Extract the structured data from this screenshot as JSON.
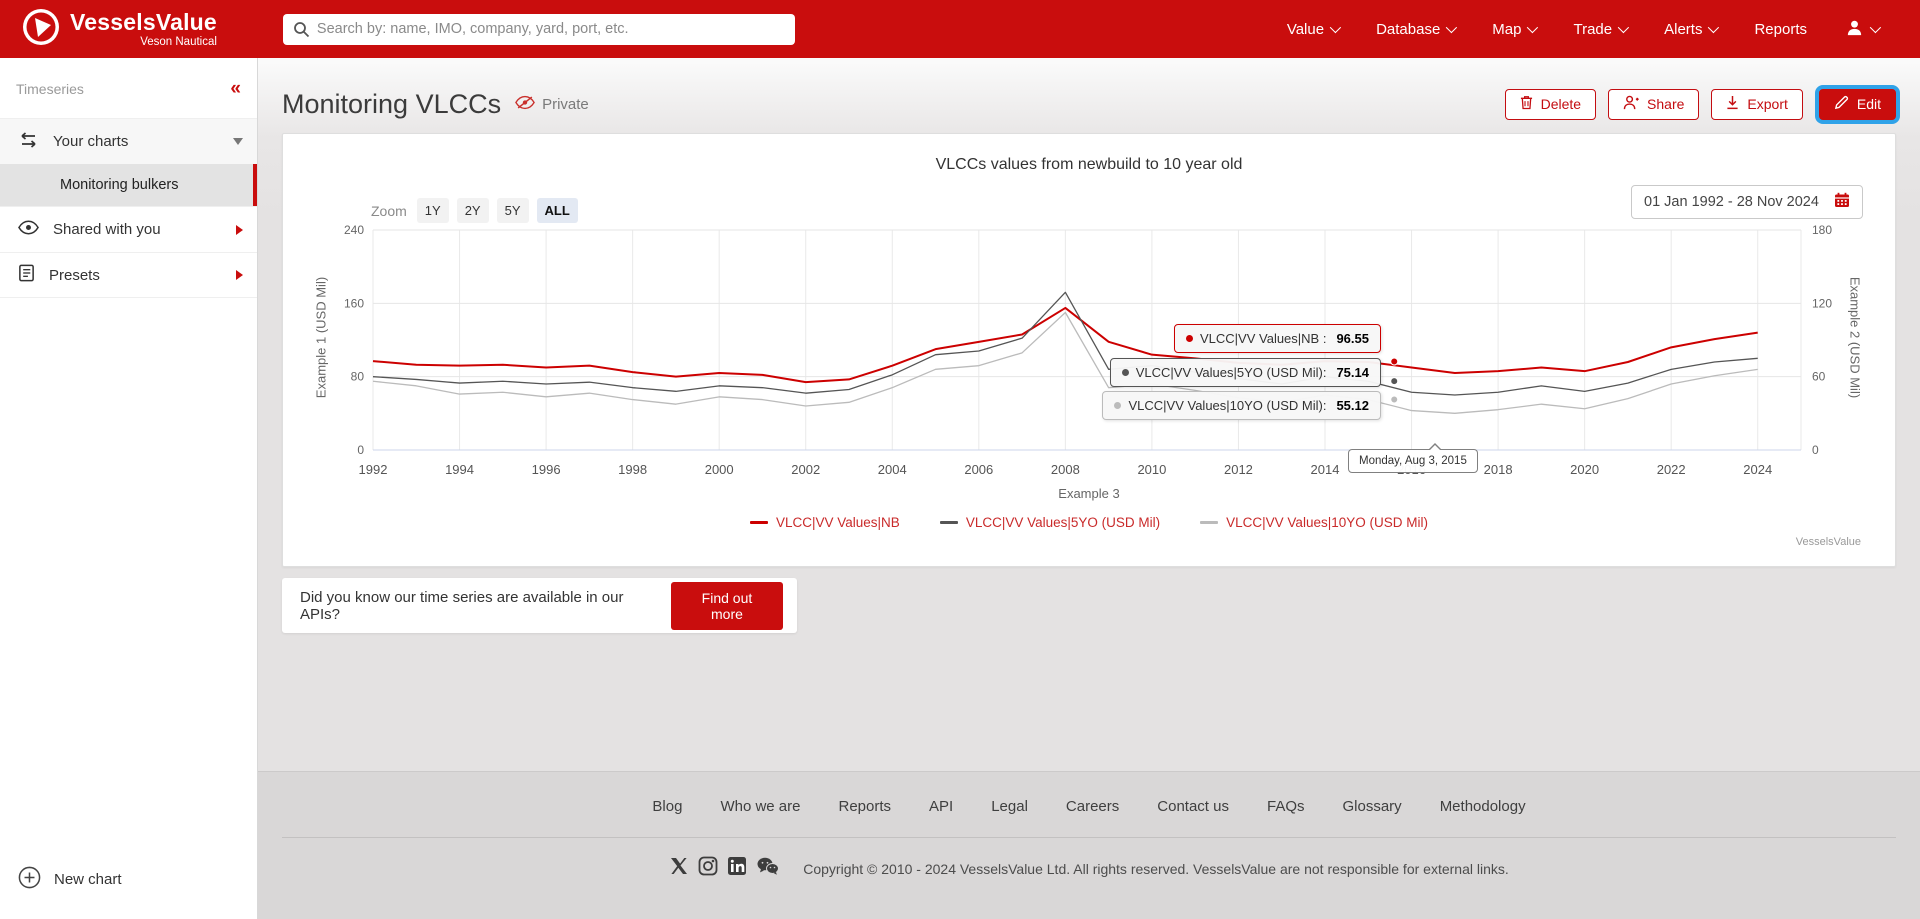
{
  "navbar": {
    "brand_name": "VesselsValue",
    "brand_subtitle": "Veson Nautical",
    "search_placeholder": "Search by: name, IMO, company, yard, port, etc.",
    "items": [
      "Value",
      "Database",
      "Map",
      "Trade",
      "Alerts",
      "Reports"
    ]
  },
  "sidebar": {
    "section_title": "Timeseries",
    "collapse_icon": "«",
    "your_charts_label": "Your charts",
    "active_chart_label": "Monitoring bulkers",
    "shared_label": "Shared with you",
    "presets_label": "Presets",
    "new_chart_label": "New chart"
  },
  "header": {
    "title": "Monitoring VLCCs",
    "visibility": "Private",
    "delete_label": "Delete",
    "share_label": "Share",
    "export_label": "Export",
    "edit_label": "Edit"
  },
  "chart_card": {
    "zoom_label": "Zoom",
    "zoom_options": [
      "1Y",
      "2Y",
      "5Y",
      "ALL"
    ],
    "active_zoom": "ALL",
    "date_range": "01 Jan 1992 - 28 Nov 2024",
    "tooltips": [
      {
        "label": "VLCC|VV Values|NB :",
        "value": "96.55"
      },
      {
        "label": "VLCC|VV Values|5YO (USD Mil):",
        "value": "75.14"
      },
      {
        "label": "VLCC|VV Values|10YO (USD Mil):",
        "value": "55.12"
      }
    ],
    "hover_date": "Monday, Aug 3, 2015",
    "watermark": "VesselsValue"
  },
  "chart_data": {
    "type": "line",
    "title": "VLCCs values from newbuild to 10 year old",
    "xlabel": "Example 3",
    "ylabel_left": "Example 1 (USD Mil)",
    "ylabel_right": "Example 2 (USD Mil)",
    "xlim": [
      1992,
      2025
    ],
    "x_ticks": [
      1992,
      1994,
      1996,
      1998,
      2000,
      2002,
      2004,
      2006,
      2008,
      2010,
      2012,
      2014,
      2016,
      2018,
      2020,
      2022,
      2024
    ],
    "ylim_left": [
      0,
      240
    ],
    "yticks_left": [
      0,
      80,
      160,
      240
    ],
    "ylim_right": [
      0,
      180
    ],
    "yticks_right": [
      0,
      60,
      120,
      180
    ],
    "grid": true,
    "legend_position": "bottom",
    "x": [
      1992,
      1993,
      1994,
      1995,
      1996,
      1997,
      1998,
      1999,
      2000,
      2001,
      2002,
      2003,
      2004,
      2005,
      2006,
      2007,
      2008,
      2009,
      2010,
      2011,
      2012,
      2013,
      2014,
      2015,
      2016,
      2017,
      2018,
      2019,
      2020,
      2021,
      2022,
      2023,
      2024
    ],
    "series": [
      {
        "name": "VLCC|VV Values|NB",
        "color": "#cc0000",
        "values": [
          97,
          93,
          92,
          93,
          90,
          92,
          85,
          80,
          84,
          82,
          74,
          77,
          92,
          110,
          118,
          126,
          155,
          118,
          104,
          100,
          95,
          93,
          97,
          96,
          90,
          84,
          86,
          90,
          86,
          96,
          112,
          121,
          128
        ]
      },
      {
        "name": "VLCC|VV Values|5YO (USD Mil)",
        "color": "#555555",
        "values": [
          80,
          77,
          73,
          75,
          72,
          74,
          68,
          64,
          70,
          68,
          62,
          66,
          82,
          104,
          108,
          122,
          172,
          88,
          92,
          85,
          78,
          72,
          80,
          75,
          63,
          60,
          63,
          70,
          64,
          73,
          88,
          96,
          100
        ]
      },
      {
        "name": "VLCC|VV Values|10YO (USD Mil)",
        "color": "#bbbbbb",
        "values": [
          75,
          70,
          61,
          63,
          58,
          62,
          55,
          50,
          58,
          55,
          48,
          52,
          68,
          88,
          92,
          106,
          150,
          68,
          72,
          65,
          57,
          52,
          60,
          55,
          43,
          40,
          44,
          50,
          45,
          56,
          72,
          81,
          88
        ]
      }
    ],
    "hover": {
      "x": 2015.6,
      "date": "Monday, Aug 3, 2015",
      "values": [
        96.55,
        75.14,
        55.12
      ]
    }
  },
  "api_banner": {
    "text": "Did you know our time series are available in our APIs?",
    "button_label": "Find out more"
  },
  "footer": {
    "links": [
      "Blog",
      "Who we are",
      "Reports",
      "API",
      "Legal",
      "Careers",
      "Contact us",
      "FAQs",
      "Glossary",
      "Methodology"
    ],
    "copyright": "Copyright © 2010 - 2024 VesselsValue Ltd. All rights reserved. VesselsValue are not responsible for external links."
  },
  "colors": {
    "brand_red": "#c90d0d",
    "edit_highlight": "#30a2e8",
    "accent_legend": "#c92a2a"
  }
}
